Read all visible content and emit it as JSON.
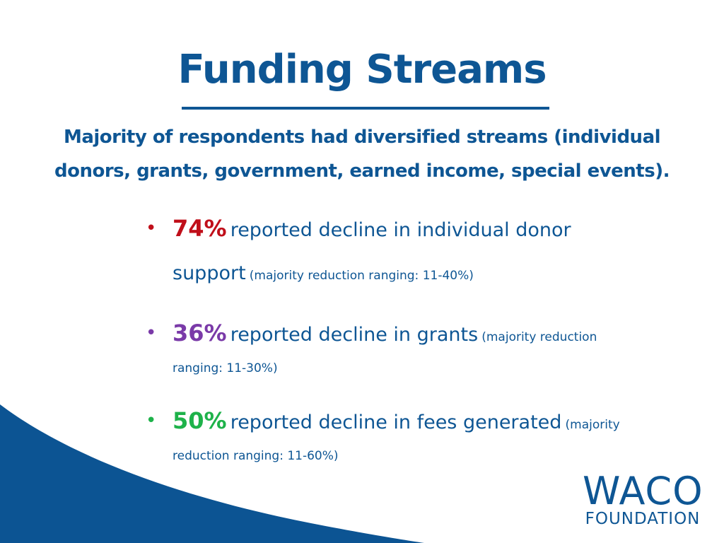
{
  "slide": {
    "title": "Funding Streams",
    "subtitle_line1": "Majority of respondents had diversified streams (individual",
    "subtitle_line2": "donors, grants, government, earned income, special events).",
    "bullets": [
      {
        "percent": "74%",
        "text_line1": "reported decline in individual donor",
        "text_line2": "support",
        "note": "(majority reduction ranging: 11-40%)",
        "color": "#c00f1a"
      },
      {
        "percent": "36%",
        "text_line1": "reported decline in grants",
        "note_line1": "(majority reduction",
        "note_line2": "ranging: 11-30%)",
        "color": "#7a3aa8"
      },
      {
        "percent": "50%",
        "text_line1": "reported decline in fees generated",
        "note_line1": "(majority",
        "note_line2": "reduction ranging: 11-60%)",
        "color": "#1eb24a"
      }
    ],
    "logo": {
      "top": "WACO",
      "bottom": "FOUNDATION"
    },
    "colors": {
      "primary_blue": "#0e5694",
      "swoosh_blue": "#0c5493"
    }
  }
}
